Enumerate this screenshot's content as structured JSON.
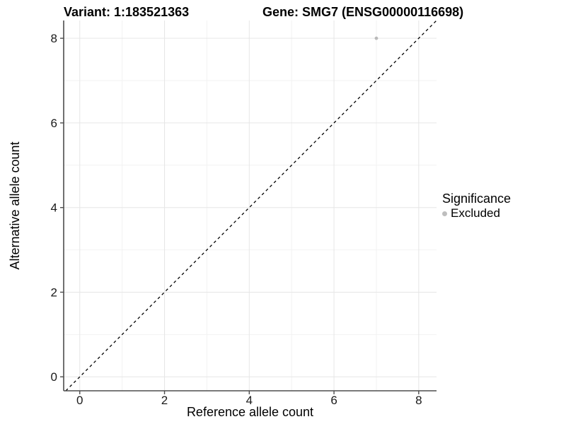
{
  "titles": {
    "left": "Variant: 1:183521363",
    "right": "Gene: SMG7 (ENSG00000116698)"
  },
  "chart_data": {
    "type": "scatter",
    "xlabel": "Reference allele count",
    "ylabel": "Alternative allele count",
    "x_ticks": [
      0,
      2,
      4,
      6,
      8
    ],
    "y_ticks": [
      0,
      2,
      4,
      6,
      8
    ],
    "x_minor": [
      1,
      3,
      5,
      7
    ],
    "y_minor": [
      1,
      3,
      5,
      7
    ],
    "xlim": [
      -0.38,
      8.42
    ],
    "ylim": [
      -0.33,
      8.42
    ],
    "grid": "major+minor",
    "points": [
      {
        "x": 7,
        "y": 8,
        "series": "Excluded"
      }
    ],
    "reference_line": {
      "slope": 1,
      "intercept": 0,
      "style": "dashed"
    },
    "legend": {
      "title": "Significance",
      "position": "right",
      "items": [
        {
          "label": "Excluded",
          "color": "#bebebe"
        }
      ]
    },
    "colors": {
      "background": "#ffffff",
      "grid_major": "#e6e6e6",
      "grid_minor": "#f2f2f2",
      "axis_line": "#4d4d4d",
      "tick_label": "#1a1a1a",
      "reference_line": "#000000",
      "point": "#b9b9b9"
    }
  }
}
